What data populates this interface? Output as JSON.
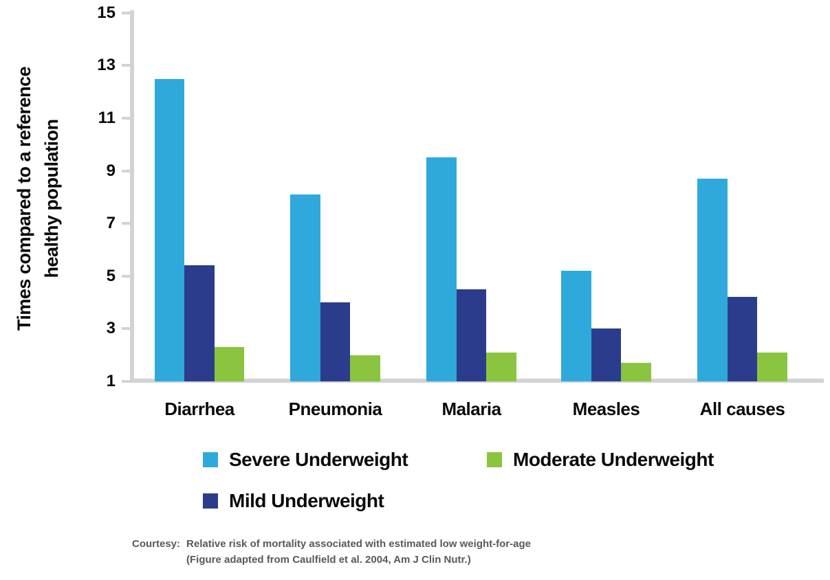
{
  "chart_data": {
    "type": "bar",
    "title": "",
    "ylabel_line1": "Times compared to a reference",
    "ylabel_line2": "healthy population",
    "categories": [
      "Diarrhea",
      "Pneumonia",
      "Malaria",
      "Measles",
      "All causes"
    ],
    "series": [
      {
        "name": "Severe Underweight",
        "color": "#2fa9dc",
        "values": [
          12.5,
          8.1,
          9.5,
          5.2,
          8.7
        ]
      },
      {
        "name": "Mild Underweight",
        "color": "#2b3c8c",
        "values": [
          5.4,
          4.0,
          4.5,
          3.0,
          4.2
        ]
      },
      {
        "name": "Moderate Underweight",
        "color": "#8bc43e",
        "values": [
          2.3,
          2.0,
          2.1,
          1.7,
          2.1
        ]
      }
    ],
    "y_ticks": [
      15,
      13,
      11,
      9,
      7,
      5,
      3,
      1
    ],
    "ylim": [
      1,
      15
    ],
    "grid": false,
    "legend_position": "bottom",
    "legend_layout": [
      [
        "Severe Underweight",
        "Moderate Underweight"
      ],
      [
        "Mild Underweight"
      ]
    ],
    "axis_color": "#d2d3d5"
  },
  "footer": {
    "courtesy_label": "Courtesy:",
    "line1": "Relative risk of mortality associated with estimated low weight-for-age",
    "line2": "(Figure adapted from Caulfield et al. 2004, Am J Clin Nutr.)"
  }
}
